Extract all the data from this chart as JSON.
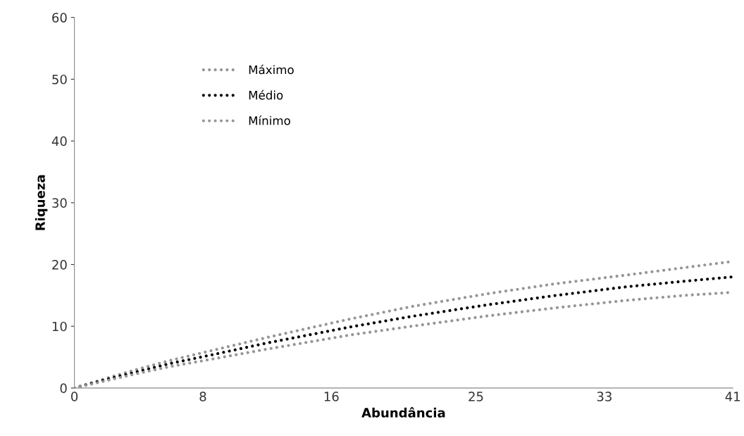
{
  "chart_data": {
    "type": "line",
    "xlabel": "Abundância",
    "ylabel": "Riqueza",
    "x": [
      0,
      2,
      4,
      6,
      8.6,
      12,
      17.2,
      21,
      25.8,
      30,
      34.4,
      38,
      41
    ],
    "series": [
      {
        "name": "Máximo",
        "color": "#969696",
        "values": [
          0,
          1.6,
          3.1,
          4.5,
          6.1,
          8.2,
          11.2,
          13.2,
          15.3,
          16.9,
          18.3,
          19.5,
          20.5
        ]
      },
      {
        "name": "Médio",
        "color": "#000000",
        "values": [
          0,
          1.4,
          2.7,
          4.0,
          5.4,
          7.3,
          9.9,
          11.6,
          13.5,
          15.0,
          16.4,
          17.3,
          18.0
        ]
      },
      {
        "name": "Mínimo",
        "color": "#969696",
        "values": [
          0,
          1.2,
          2.4,
          3.5,
          4.7,
          6.3,
          8.6,
          10.0,
          11.7,
          13.0,
          14.2,
          15.0,
          15.5
        ]
      }
    ],
    "xlim": [
      0,
      41
    ],
    "xticks": [
      0,
      8,
      16,
      25,
      33,
      41
    ],
    "ylim": [
      0,
      60
    ],
    "yticks": [
      0,
      10,
      20,
      30,
      40,
      50,
      60
    ],
    "grid": false,
    "legend": "top left",
    "line_style": "dotted",
    "marker": "none"
  }
}
